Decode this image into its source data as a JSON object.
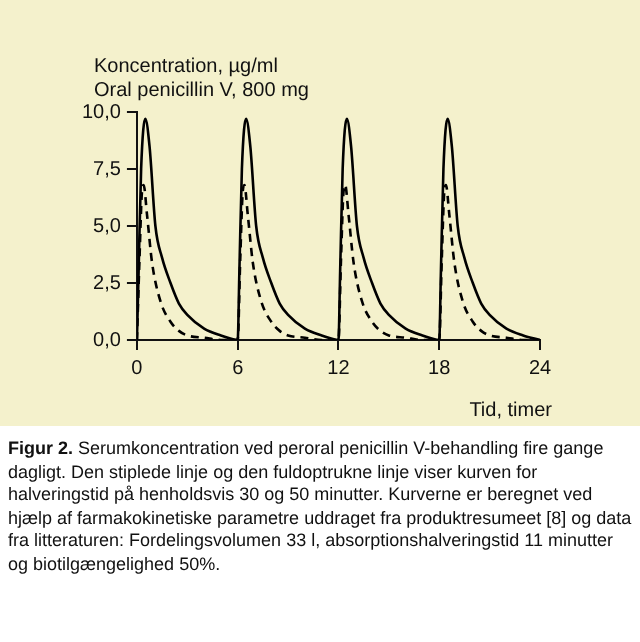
{
  "chart_data": {
    "type": "line",
    "ylabel": "Koncentration, µg/ml",
    "subtitle": "Oral penicillin V, 800 mg",
    "xlabel": "Tid, timer",
    "annotations": [
      "Figur 2.",
      "Serumkoncentration ved peroral penicillin V-behandling fire gange dagligt. Den stiplede linje og den fuldoptrukne linje viser kurven for halveringstid på henholdsvis 30 og 50 minutter. Kurverne er beregnet ved hjælp af farmakokinetiske parametre uddraget fra produktresumeet [8] og data fra litteraturen: Fordelingsvolumen 33 l, absorptionshalveringstid 11 minutter og biotilgængelighed 50%."
    ],
    "xlim": [
      0,
      24
    ],
    "xticks": [
      0,
      6,
      12,
      18,
      24
    ],
    "ylim": [
      0,
      10
    ],
    "yticks": [
      {
        "value": 0,
        "label": "0,0"
      },
      {
        "value": 2.5,
        "label": "2,5"
      },
      {
        "value": 5,
        "label": "5,0"
      },
      {
        "value": 7.5,
        "label": "7,5"
      },
      {
        "value": 10,
        "label": "10,0"
      }
    ],
    "grid": false,
    "legend": false,
    "marker": "none",
    "series": [
      {
        "color": "#000000",
        "line_style": "solid",
        "x": [
          0,
          0.1,
          0.25,
          0.5,
          0.75,
          1.1,
          1.5,
          2,
          2.5,
          3,
          4,
          5,
          6,
          6.1,
          6.25,
          6.5,
          6.75,
          7.1,
          7.5,
          8,
          8.5,
          9,
          10,
          11,
          12,
          12.1,
          12.25,
          12.5,
          12.75,
          13.1,
          13.5,
          14,
          14.5,
          15,
          16,
          17,
          18,
          18.1,
          18.25,
          18.5,
          18.75,
          19.1,
          19.5,
          20,
          20.5,
          21,
          22,
          23,
          24
        ],
        "values": [
          0,
          3,
          7.5,
          9.7,
          8.5,
          5,
          3.6,
          2.5,
          1.6,
          1.1,
          0.5,
          0.2,
          0,
          3,
          7.5,
          9.7,
          8.5,
          5,
          3.6,
          2.5,
          1.6,
          1.1,
          0.5,
          0.2,
          0,
          3,
          7.5,
          9.7,
          8.5,
          5,
          3.6,
          2.5,
          1.6,
          1.1,
          0.5,
          0.2,
          0,
          3,
          7.5,
          9.7,
          8.5,
          5,
          3.6,
          2.5,
          1.6,
          1.1,
          0.5,
          0.2,
          0
        ]
      },
      {
        "color": "#000000",
        "line_style": "dashed",
        "x": [
          0,
          0.15,
          0.3,
          0.4,
          0.6,
          0.9,
          1.4,
          2,
          2.5,
          3,
          4,
          5,
          6,
          6.15,
          6.3,
          6.4,
          6.6,
          6.9,
          7.4,
          8,
          8.5,
          9,
          10,
          11,
          12,
          12.15,
          12.3,
          12.4,
          12.6,
          12.9,
          13.4,
          14,
          14.5,
          15,
          16,
          17,
          18,
          18.15,
          18.3,
          18.4,
          18.6,
          18.9,
          19.4,
          20,
          20.5,
          21,
          22,
          23,
          24
        ],
        "values": [
          0,
          3.5,
          6.5,
          6.8,
          5.5,
          3.4,
          1.7,
          0.8,
          0.4,
          0.2,
          0.1,
          0,
          0,
          3.5,
          6.5,
          6.8,
          5.5,
          3.4,
          1.7,
          0.8,
          0.4,
          0.2,
          0.1,
          0,
          0,
          3.5,
          6.5,
          6.8,
          5.5,
          3.4,
          1.7,
          0.8,
          0.4,
          0.2,
          0.1,
          0,
          0,
          3.5,
          6.5,
          6.8,
          5.5,
          3.4,
          1.7,
          0.8,
          0.4,
          0.2,
          0.1,
          0,
          0
        ]
      }
    ]
  }
}
